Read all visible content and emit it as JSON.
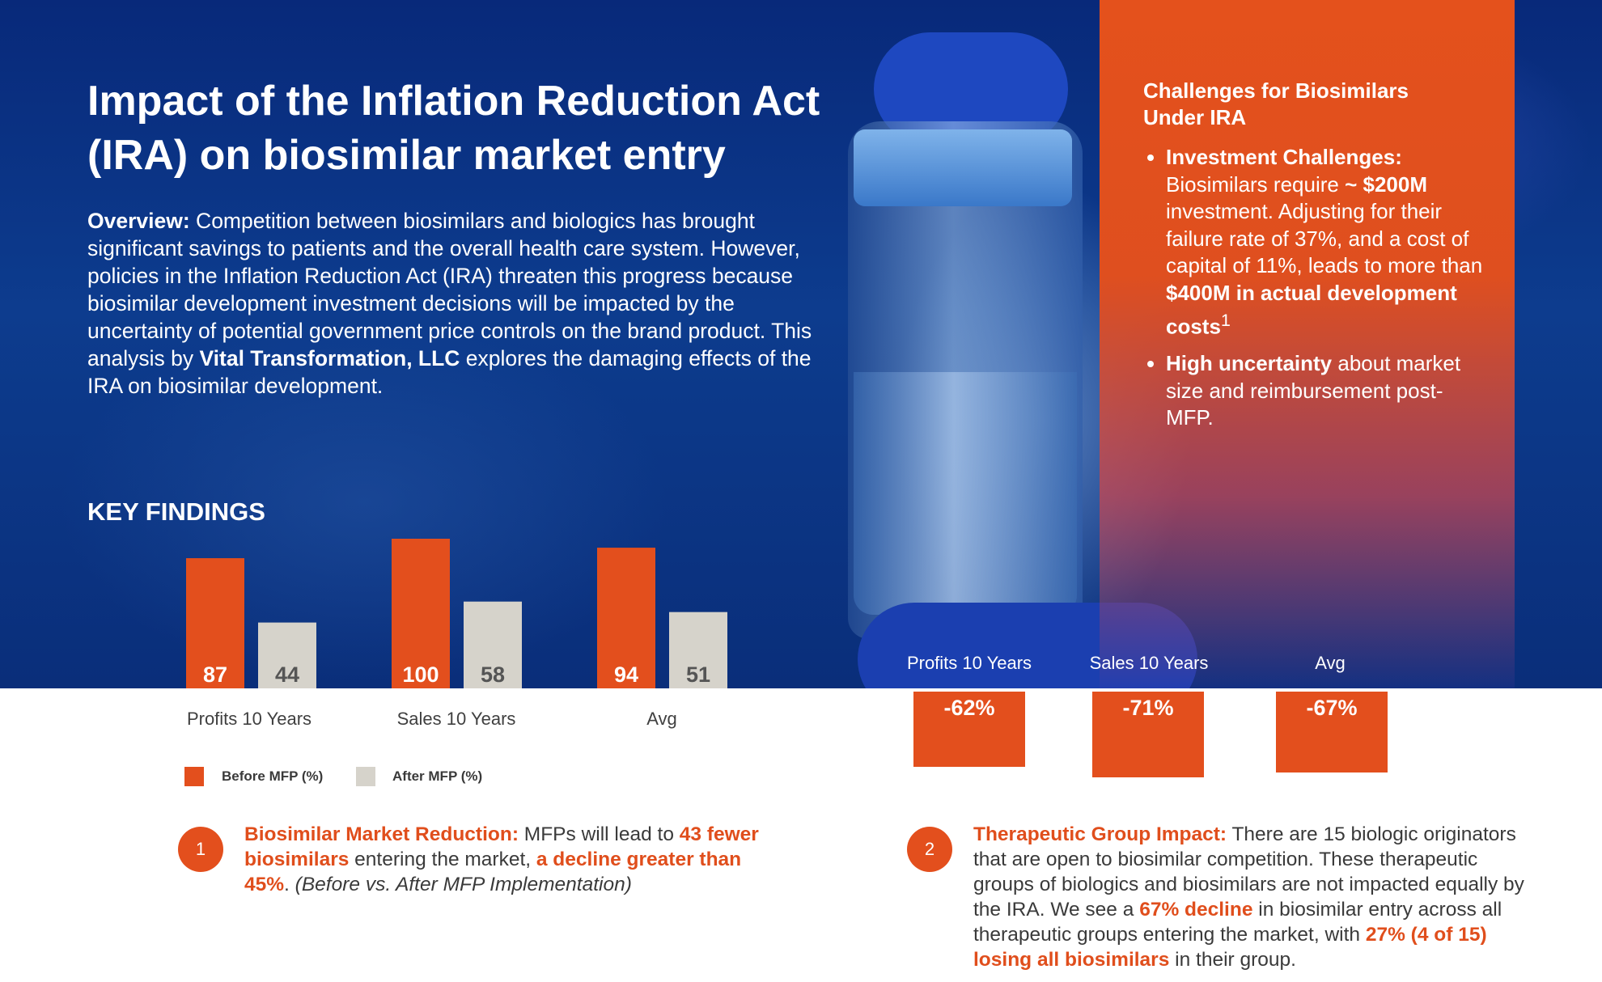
{
  "title": "Impact of the Inflation Reduction Act (IRA) on biosimilar market entry",
  "overview": {
    "label": "Overview:",
    "text_1": " Competition between biosimilars and biologics has brought significant savings to patients and the overall health care system. However, policies in the Inflation Reduction Act (IRA) threaten this progress because biosimilar development investment decisions will be impacted by the uncertainty of potential government price controls on the brand product. This analysis by ",
    "company": "Vital Transformation, LLC",
    "text_2": " explores the damaging effects of the IRA on biosimilar development."
  },
  "key_findings_heading": "KEY FINDINGS",
  "challenges": {
    "heading": "Challenges for Biosimilars Under IRA",
    "item1": {
      "bold": "Investment Challenges:",
      "t1": " Biosimilars require ",
      "b2": "~ $200M",
      "t2": " investment. Adjusting for their failure rate of 37%, and a cost of capital of 11%, leads to more than ",
      "b3": "$400M in actual development costs",
      "sup": "1"
    },
    "item2": {
      "bold": "High uncertainty",
      "t1": " about market size and reimbursement post-MFP."
    }
  },
  "chart_data": [
    {
      "type": "bar",
      "categories": [
        "Profits 10 Years",
        "Sales 10 Years",
        "Avg"
      ],
      "series": [
        {
          "name": "Before MFP (%)",
          "values": [
            87,
            100,
            94
          ],
          "color": "#e34f1d"
        },
        {
          "name": "After MFP (%)",
          "values": [
            44,
            58,
            51
          ],
          "color": "#d6d3cb"
        }
      ],
      "ylim": [
        0,
        100
      ],
      "legend": "bottom-left"
    },
    {
      "type": "bar",
      "categories": [
        "Profits 10 Years",
        "Sales 10 Years",
        "Avg"
      ],
      "values": [
        -62,
        -71,
        -67
      ],
      "labels": [
        "-62%",
        "-71%",
        "-67%"
      ],
      "color": "#e34f1d"
    }
  ],
  "findings": [
    {
      "number": "1",
      "title": "Biosimilar Market Reduction:",
      "t1": " MFPs will lead to ",
      "h1": "43 fewer biosimilars",
      "t2": " entering the market, ",
      "h2": "a decline greater than 45%",
      "t3": ". ",
      "italic": "(Before vs. After MFP Implementation)"
    },
    {
      "number": "2",
      "title": "Therapeutic Group Impact:",
      "t1": " There are 15 biologic originators that are open to biosimilar competition. These therapeutic groups of biologics and biosimilars are not impacted equally by the IRA. We see a ",
      "h1": "67% decline",
      "t2": " in biosimilar entry across all therapeutic groups entering the market, with ",
      "h2": "27% (4 of 15) losing all biosimilars",
      "t3": " in their group."
    }
  ]
}
